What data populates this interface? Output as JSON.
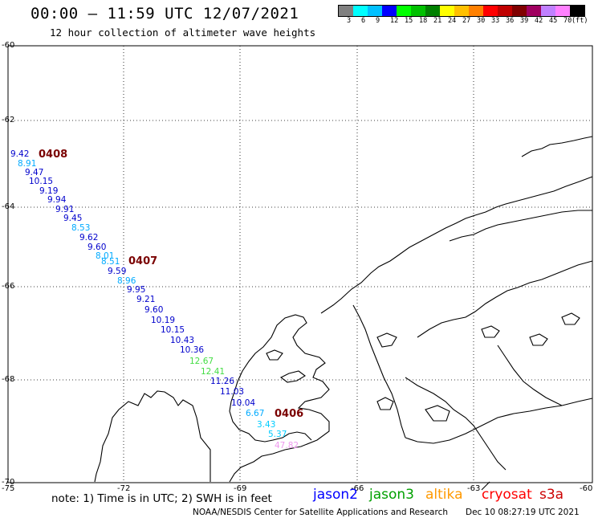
{
  "header": {
    "title": "00:00 – 11:59 UTC 12/07/2021",
    "subtitle": "12 hour collection of altimeter wave heights"
  },
  "colorbar": {
    "colors": [
      "#808080",
      "#00ffff",
      "#00c0ff",
      "#0000ff",
      "#00ff00",
      "#00c000",
      "#008000",
      "#ffff00",
      "#ffc000",
      "#ff8000",
      "#ff0000",
      "#c00000",
      "#800000",
      "#a00060",
      "#c080ff",
      "#ff80ff",
      "#000000"
    ],
    "labels": [
      "3",
      "6",
      "9",
      "12",
      "15",
      "18",
      "21",
      "24",
      "27",
      "30",
      "33",
      "36",
      "39",
      "42",
      "45",
      "70"
    ],
    "unit": "(ft)"
  },
  "map": {
    "lon_labels": [
      "-75",
      "-72",
      "-69",
      "-66",
      "-63",
      "-60"
    ],
    "lat_labels": [
      "-60",
      "-62",
      "-64",
      "-66",
      "-68",
      "-70"
    ]
  },
  "passes": [
    {
      "id": "0408"
    },
    {
      "id": "0407"
    },
    {
      "id": "0406"
    }
  ],
  "wave_heights": [
    {
      "v": "9.42",
      "c": "#0000cc"
    },
    {
      "v": "8.91",
      "c": "#00aaff"
    },
    {
      "v": "9.47",
      "c": "#0000cc"
    },
    {
      "v": "10.15",
      "c": "#0000cc"
    },
    {
      "v": "9.19",
      "c": "#0000cc"
    },
    {
      "v": "9.94",
      "c": "#0000cc"
    },
    {
      "v": "9.91",
      "c": "#0000cc"
    },
    {
      "v": "9.45",
      "c": "#0000cc"
    },
    {
      "v": "8.53",
      "c": "#00aaff"
    },
    {
      "v": "9.62",
      "c": "#0000cc"
    },
    {
      "v": "9.60",
      "c": "#0000cc"
    },
    {
      "v": "8.01",
      "c": "#00aaff"
    },
    {
      "v": "8.51",
      "c": "#00aaff"
    },
    {
      "v": "9.59",
      "c": "#0000cc"
    },
    {
      "v": "8.96",
      "c": "#00aaff"
    },
    {
      "v": "9.95",
      "c": "#0000cc"
    },
    {
      "v": "9.21",
      "c": "#0000cc"
    },
    {
      "v": "9.60",
      "c": "#0000cc"
    },
    {
      "v": "10.19",
      "c": "#0000cc"
    },
    {
      "v": "10.15",
      "c": "#0000cc"
    },
    {
      "v": "10.43",
      "c": "#0000cc"
    },
    {
      "v": "10.36",
      "c": "#0000cc"
    },
    {
      "v": "12.67",
      "c": "#44dd44"
    },
    {
      "v": "12.41",
      "c": "#44dd44"
    },
    {
      "v": "11.26",
      "c": "#0000cc"
    },
    {
      "v": "11.03",
      "c": "#0000cc"
    },
    {
      "v": "10.04",
      "c": "#0000cc"
    },
    {
      "v": "6.67",
      "c": "#00aaff"
    },
    {
      "v": "3.43",
      "c": "#00ccff"
    },
    {
      "v": "5.37",
      "c": "#00ccff"
    },
    {
      "v": "47.82",
      "c": "#ee99ee"
    }
  ],
  "note": "note: 1) Time is in UTC; 2) SWH is in feet",
  "satellites": [
    {
      "name": "jason2",
      "color": "#0000ff"
    },
    {
      "name": "jason3",
      "color": "#00a000"
    },
    {
      "name": "altika",
      "color": "#ff9900"
    },
    {
      "name": "cryosat",
      "color": "#ff0000"
    },
    {
      "name": "s3a",
      "color": "#cc0000"
    }
  ],
  "footer": {
    "credit": "NOAA/NESDIS Center for Satellite Applications and Research",
    "timestamp": "Dec 10 08:27:19 UTC 2021"
  }
}
